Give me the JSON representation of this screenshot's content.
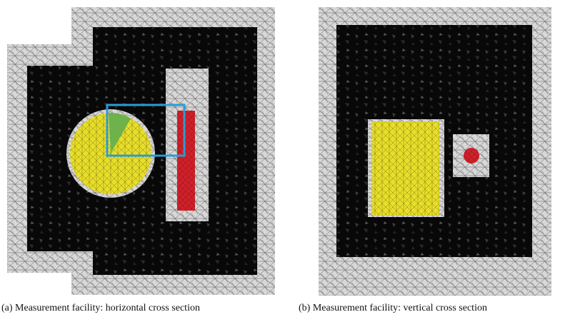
{
  "captions": {
    "a": "(a) Measurement facility: horizontal cross section",
    "b": "(b) Measurement facility: vertical cross section"
  }
}
